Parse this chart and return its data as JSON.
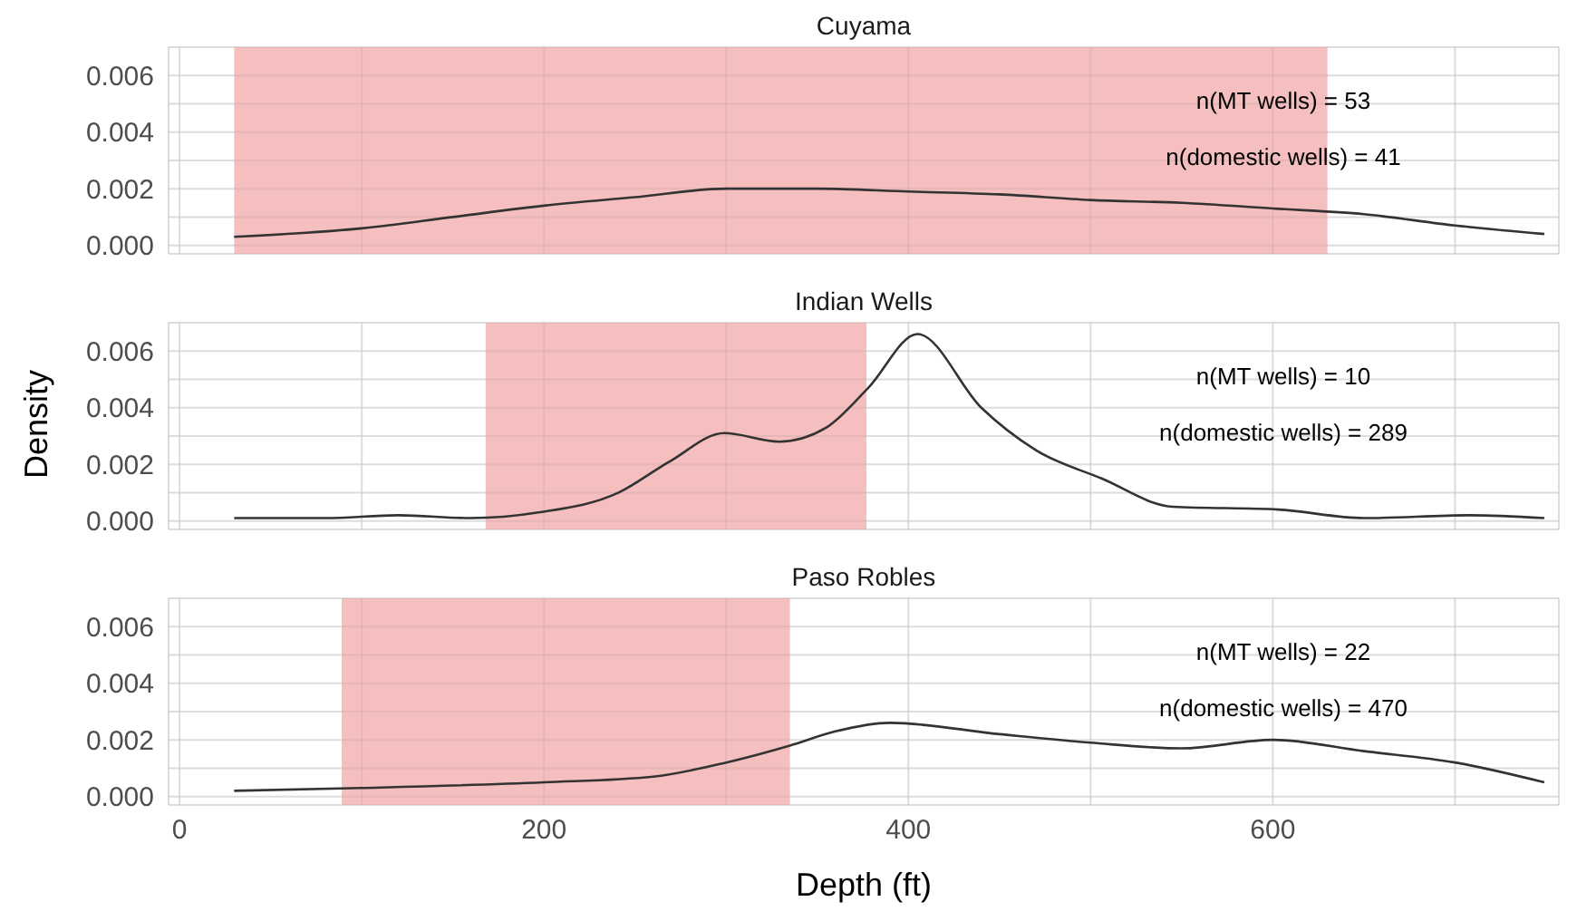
{
  "chart_data": [
    {
      "type": "line",
      "title": "Cuyama",
      "x": [
        30,
        100,
        150,
        200,
        250,
        300,
        350,
        400,
        450,
        500,
        550,
        600,
        650,
        700,
        749
      ],
      "series": [
        {
          "color": "#333333",
          "values": [
            0.0003,
            0.0006,
            0.001,
            0.0014,
            0.0017,
            0.002,
            0.002,
            0.0019,
            0.0018,
            0.0016,
            0.0015,
            0.0013,
            0.0011,
            0.0007,
            0.0004
          ]
        }
      ],
      "xlim": [
        -6,
        757
      ],
      "ylim": [
        -0.0003,
        0.007
      ],
      "xticks": [
        0,
        {
          "value": 100,
          "label": null
        },
        200,
        {
          "value": 300,
          "label": null
        },
        400,
        {
          "value": 500,
          "label": null
        },
        600,
        {
          "value": 700,
          "label": null
        }
      ],
      "yticks": [
        {
          "value": 0,
          "label": "0.000"
        },
        {
          "value": 0.001,
          "label": null
        },
        0.002,
        {
          "value": 0.003,
          "label": null
        },
        0.004,
        {
          "value": 0.005,
          "label": null
        },
        0.006
      ],
      "bands": [
        {
          "axis": "x",
          "from": 30,
          "to": 630,
          "color": "#f5bfbf"
        }
      ],
      "annotations": [
        "n(MT wells) = 53",
        "n(domestic wells) = 41"
      ],
      "grid": true,
      "tick_labels": "y",
      "marker": "none"
    },
    {
      "type": "line",
      "title": "Indian Wells",
      "ylabel": "Density",
      "x": [
        30,
        80,
        120,
        160,
        197,
        241,
        269,
        299,
        329,
        355,
        378,
        405,
        440,
        470,
        506,
        545,
        603,
        650,
        708,
        749
      ],
      "series": [
        {
          "color": "#333333",
          "values": [
            0.0001,
            0.0001,
            0.0002,
            0.0001,
            0.0003,
            0.001,
            0.0021,
            0.0031,
            0.0028,
            0.0033,
            0.0047,
            0.0066,
            0.004,
            0.0025,
            0.0015,
            0.0005,
            0.0004,
            0.0001,
            0.0002,
            0.0001
          ]
        }
      ],
      "xlim": [
        -6,
        757
      ],
      "ylim": [
        -0.0003,
        0.007
      ],
      "xticks": [
        0,
        {
          "value": 100,
          "label": null
        },
        200,
        {
          "value": 300,
          "label": null
        },
        400,
        {
          "value": 500,
          "label": null
        },
        600,
        {
          "value": 700,
          "label": null
        }
      ],
      "yticks": [
        {
          "value": 0,
          "label": "0.000"
        },
        {
          "value": 0.001,
          "label": null
        },
        0.002,
        {
          "value": 0.003,
          "label": null
        },
        0.004,
        {
          "value": 0.005,
          "label": null
        },
        0.006
      ],
      "bands": [
        {
          "axis": "x",
          "from": 168,
          "to": 377,
          "color": "#f5bfbf"
        }
      ],
      "annotations": [
        "n(MT wells) = 10",
        "n(domestic wells) = 289"
      ],
      "grid": true,
      "tick_labels": "y",
      "marker": "none"
    },
    {
      "type": "line",
      "title": "Paso Robles",
      "xlabel": "Depth (ft)",
      "x": [
        30,
        100,
        200,
        260,
        300,
        335,
        360,
        390,
        450,
        500,
        550,
        600,
        650,
        700,
        749
      ],
      "series": [
        {
          "color": "#333333",
          "values": [
            0.0002,
            0.0003,
            0.0005,
            0.0007,
            0.0012,
            0.0018,
            0.0023,
            0.0026,
            0.0022,
            0.0019,
            0.0017,
            0.002,
            0.0016,
            0.0012,
            0.0005
          ]
        }
      ],
      "xlim": [
        -6,
        757
      ],
      "ylim": [
        -0.0003,
        0.007
      ],
      "xticks": [
        0,
        {
          "value": 100,
          "label": null
        },
        200,
        {
          "value": 300,
          "label": null
        },
        400,
        {
          "value": 500,
          "label": null
        },
        600,
        {
          "value": 700,
          "label": null
        }
      ],
      "yticks": [
        {
          "value": 0,
          "label": "0.000"
        },
        {
          "value": 0.001,
          "label": null
        },
        0.002,
        {
          "value": 0.003,
          "label": null
        },
        0.004,
        {
          "value": 0.005,
          "label": null
        },
        0.006
      ],
      "bands": [
        {
          "axis": "x",
          "from": 89,
          "to": 335,
          "color": "#f5bfbf"
        }
      ],
      "annotations": [
        "n(MT wells) = 22",
        "n(domestic wells) = 470"
      ],
      "grid": true,
      "marker": "none"
    }
  ]
}
